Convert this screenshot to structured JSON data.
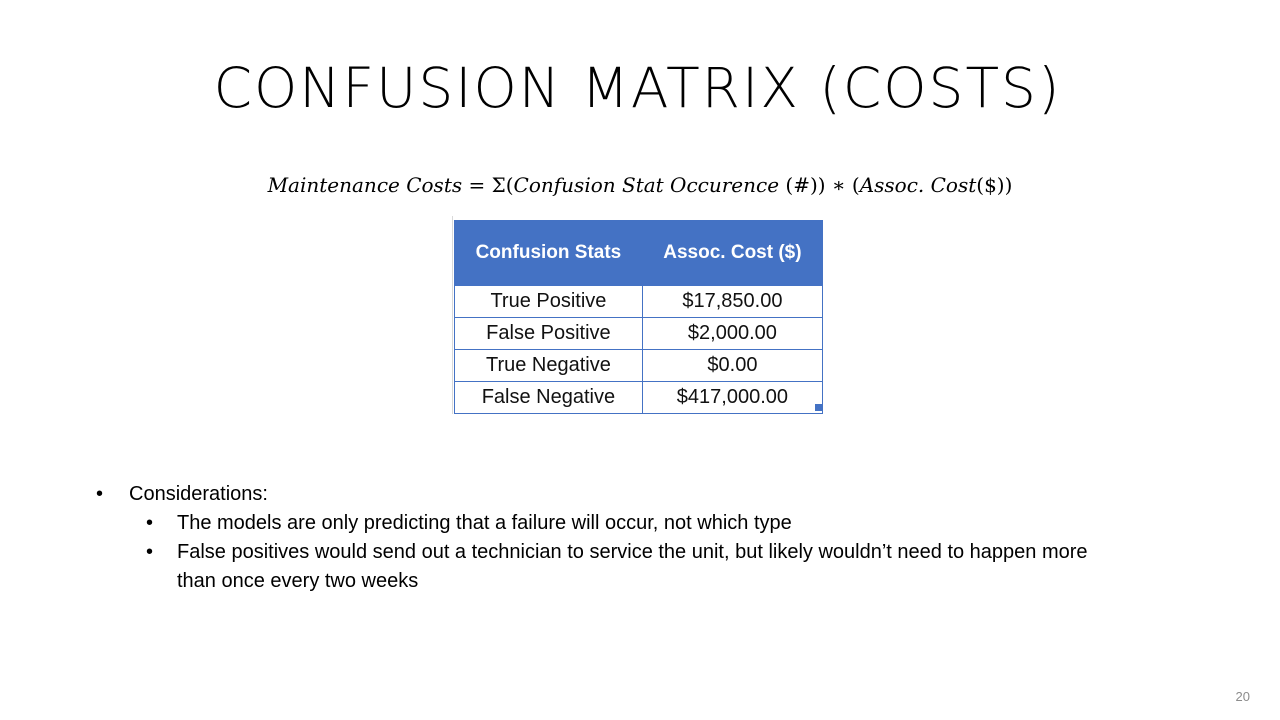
{
  "slide": {
    "title": "CONFUSION MATRIX (COSTS)",
    "formula": {
      "lhs": "Maintenance Costs",
      "equals": " = Σ(",
      "term1": "Confusion Stat Occurence",
      "count_unit": " (#)) ∗ (",
      "term2": "Assoc. Cost",
      "cost_unit": "($))"
    },
    "table": {
      "headers": [
        "Confusion Stats",
        "Assoc. Cost ($)"
      ],
      "rows": [
        {
          "stat": "True Positive",
          "cost": "$17,850.00"
        },
        {
          "stat": "False Positive",
          "cost": "$2,000.00"
        },
        {
          "stat": "True Negative",
          "cost": "$0.00"
        },
        {
          "stat": "False Negative",
          "cost": "$417,000.00"
        }
      ],
      "header_color": "#4472c4"
    },
    "bullets": {
      "main": "Considerations:",
      "sub": [
        "The models are only predicting that a failure will occur, not which type",
        "False positives would send out a technician to service the unit, but likely wouldn’t need to happen more than once every two weeks"
      ],
      "bullet_char": "•"
    },
    "page_number": "20"
  }
}
